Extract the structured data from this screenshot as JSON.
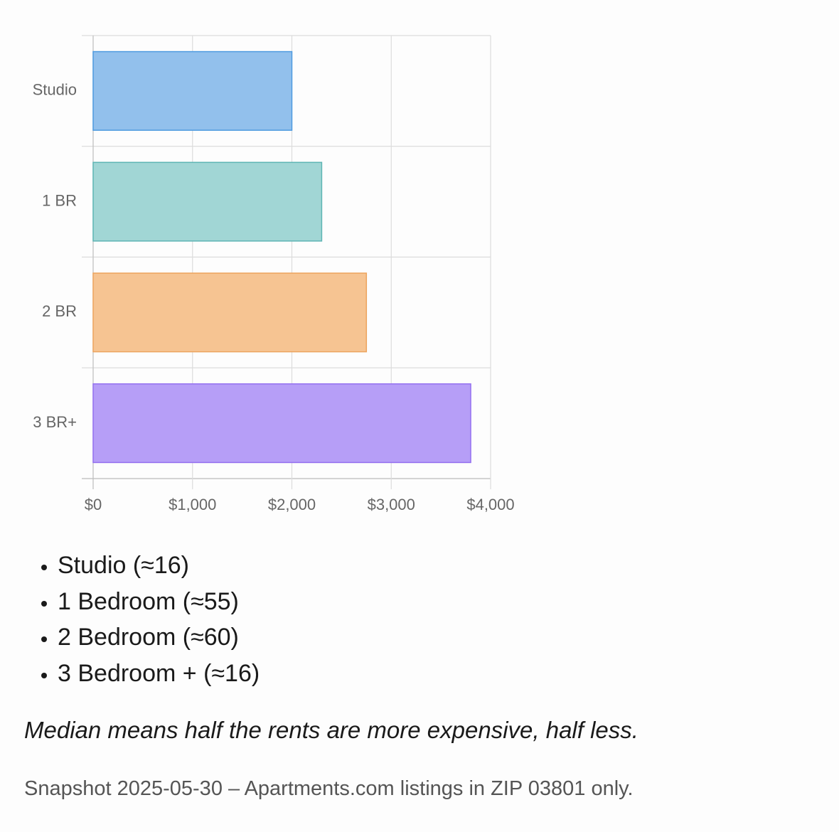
{
  "chart_data": {
    "type": "bar",
    "orientation": "horizontal",
    "categories": [
      "Studio",
      "1 BR",
      "2 BR",
      "3 BR+"
    ],
    "values": [
      2000,
      2300,
      2750,
      3800
    ],
    "xlim": [
      0,
      4000
    ],
    "xticks": [
      0,
      1000,
      2000,
      3000,
      4000
    ],
    "xtick_labels": [
      "$0",
      "$1,000",
      "$2,000",
      "$3,000",
      "$4,000"
    ],
    "grid": true,
    "colors": [
      {
        "fill": "#90bfec",
        "stroke": "#4e9be0"
      },
      {
        "fill": "#9fd5d4",
        "stroke": "#5eb5b4"
      },
      {
        "fill": "#f6c390",
        "stroke": "#eda45e"
      },
      {
        "fill": "#b59cf7",
        "stroke": "#9470f0"
      }
    ]
  },
  "legend_items": [
    "Studio (≈16)",
    "1 Bedroom (≈55)",
    "2 Bedroom (≈60)",
    "3 Bedroom + (≈16)"
  ],
  "note": "Median means half the rents are more expensive, half less.",
  "source": "Snapshot 2025-05-30 – Apartments.com listings in ZIP 03801 only."
}
